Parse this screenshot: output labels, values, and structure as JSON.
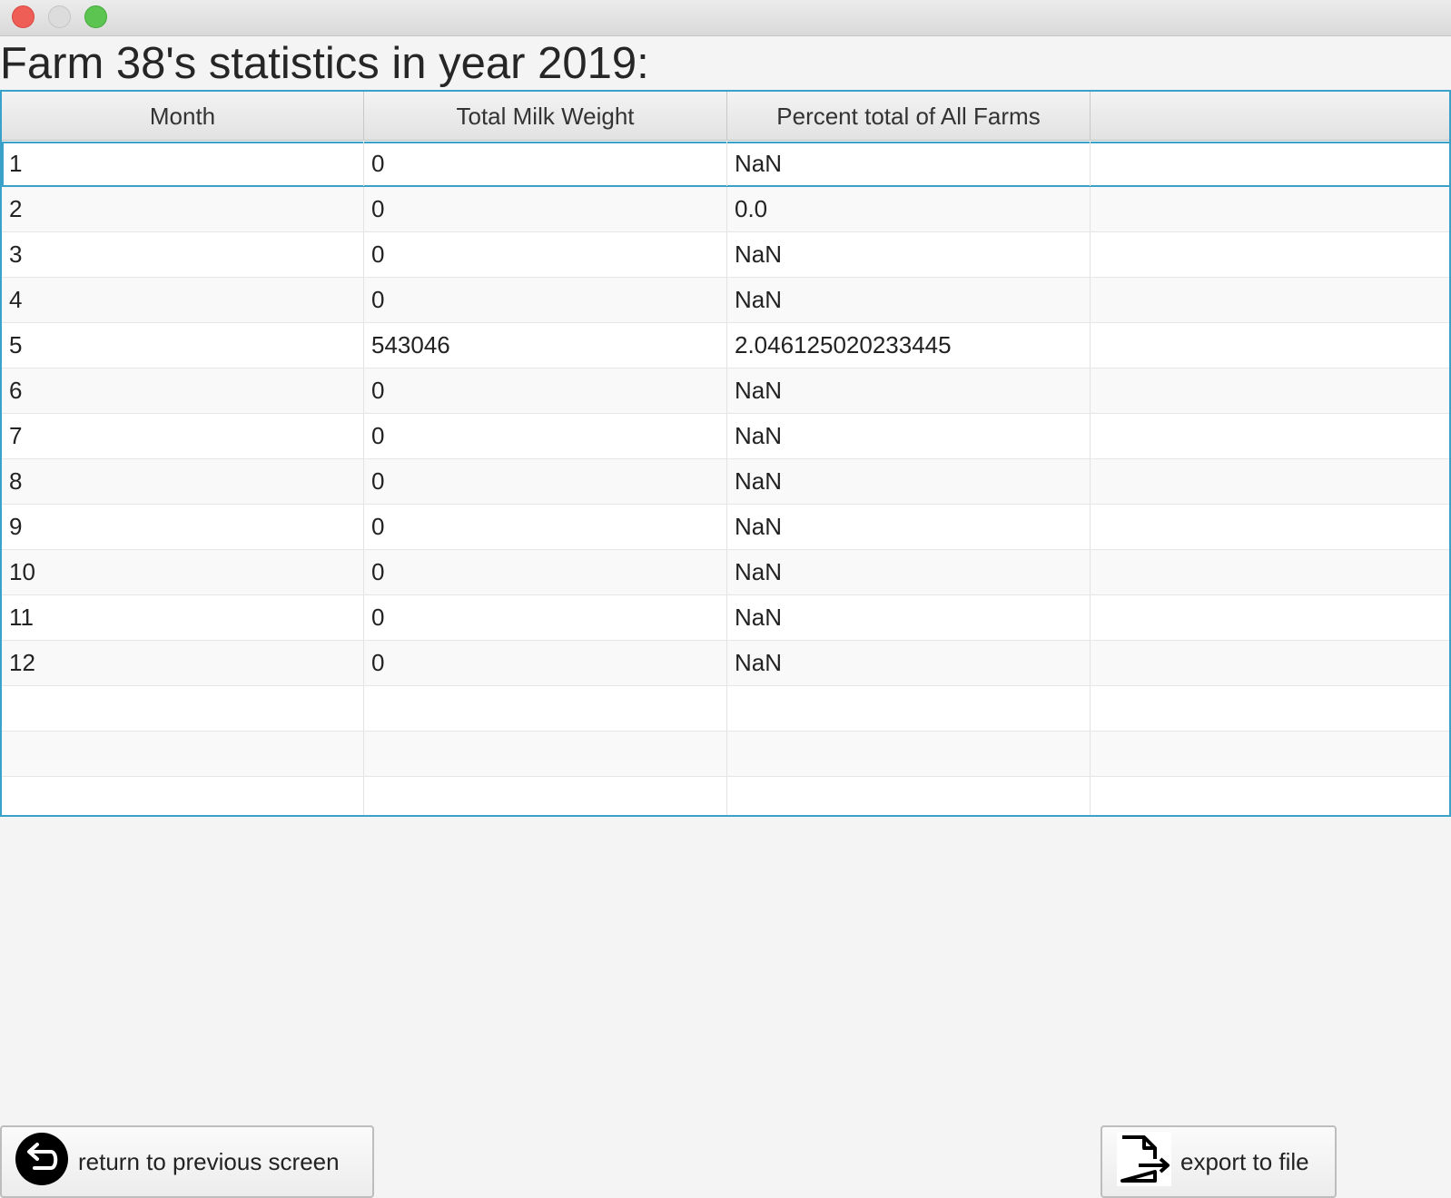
{
  "window": {
    "controls": [
      "close",
      "minimize",
      "maximize"
    ]
  },
  "page": {
    "title": "Farm 38's statistics in year 2019:"
  },
  "table": {
    "columns": [
      "Month",
      "Total Milk Weight",
      "Percent total of All Farms",
      ""
    ],
    "rows": [
      [
        "1",
        "0",
        "NaN",
        ""
      ],
      [
        "2",
        "0",
        "0.0",
        ""
      ],
      [
        "3",
        "0",
        "NaN",
        ""
      ],
      [
        "4",
        "0",
        "NaN",
        ""
      ],
      [
        "5",
        "543046",
        "2.046125020233445",
        ""
      ],
      [
        "6",
        "0",
        "NaN",
        ""
      ],
      [
        "7",
        "0",
        "NaN",
        ""
      ],
      [
        "8",
        "0",
        "NaN",
        ""
      ],
      [
        "9",
        "0",
        "NaN",
        ""
      ],
      [
        "10",
        "0",
        "NaN",
        ""
      ],
      [
        "11",
        "0",
        "NaN",
        ""
      ],
      [
        "12",
        "0",
        "NaN",
        ""
      ],
      [
        "",
        "",
        "",
        ""
      ],
      [
        "",
        "",
        "",
        ""
      ],
      [
        "",
        "",
        "",
        ""
      ]
    ],
    "selected_row": 0
  },
  "buttons": {
    "return_label": "return to previous screen",
    "return_icon": "return-arrow-icon",
    "export_label": "export to file",
    "export_icon": "export-file-icon"
  },
  "colors": {
    "accent": "#3aa1c9",
    "close": "#ee5e57",
    "maximize": "#5cc551"
  }
}
